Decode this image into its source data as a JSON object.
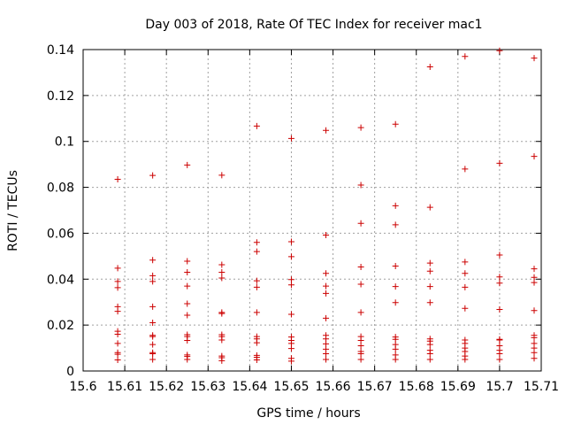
{
  "chart_data": {
    "type": "scatter",
    "title": "Day 003 of 2018, Rate Of TEC Index for receiver mac1",
    "xlabel": "GPS time / hours",
    "ylabel": "ROTI / TECUs",
    "xlim": [
      15.6,
      15.71
    ],
    "ylim": [
      0,
      0.14
    ],
    "grid": true,
    "x_ticks": [
      "15.6",
      "15.61",
      "15.62",
      "15.63",
      "15.64",
      "15.65",
      "15.66",
      "15.67",
      "15.68",
      "15.69",
      "15.7",
      "15.71"
    ],
    "x_tick_values": [
      15.6,
      15.61,
      15.62,
      15.63,
      15.64,
      15.65,
      15.66,
      15.67,
      15.68,
      15.69,
      15.7,
      15.71
    ],
    "y_ticks": [
      "0",
      "0.02",
      "0.04",
      "0.06",
      "0.08",
      "0.1",
      "0.12",
      "0.14"
    ],
    "y_tick_values": [
      0,
      0.02,
      0.04,
      0.06,
      0.08,
      0.1,
      0.12,
      0.14
    ],
    "marker": "+",
    "color": "#cc0000",
    "series": [
      {
        "name": "ROTI",
        "groups": [
          {
            "x": 15.6083,
            "y": [
              0.0835,
              0.0448,
              0.039,
              0.0363,
              0.028,
              0.026,
              0.0173,
              0.016,
              0.012,
              0.008,
              0.0073,
              0.0048
            ]
          },
          {
            "x": 15.6167,
            "y": [
              0.0852,
              0.0483,
              0.0415,
              0.039,
              0.028,
              0.021,
              0.0155,
              0.015,
              0.0115,
              0.008,
              0.0075,
              0.005
            ]
          },
          {
            "x": 15.625,
            "y": [
              0.0897,
              0.0478,
              0.043,
              0.037,
              0.0293,
              0.0243,
              0.0158,
              0.015,
              0.0133,
              0.007,
              0.0063,
              0.005
            ]
          },
          {
            "x": 15.6333,
            "y": [
              0.0853,
              0.0463,
              0.043,
              0.0405,
              0.0255,
              0.025,
              0.0158,
              0.015,
              0.0135,
              0.0065,
              0.0058,
              0.0045
            ]
          },
          {
            "x": 15.6417,
            "y": [
              0.1067,
              0.056,
              0.052,
              0.0393,
              0.0365,
              0.0255,
              0.015,
              0.014,
              0.0123,
              0.0068,
              0.006,
              0.0048
            ]
          },
          {
            "x": 15.65,
            "y": [
              0.1013,
              0.0563,
              0.0498,
              0.0398,
              0.0375,
              0.0247,
              0.0148,
              0.0133,
              0.012,
              0.0098,
              0.0055,
              0.0043
            ]
          },
          {
            "x": 15.6583,
            "y": [
              0.1048,
              0.0592,
              0.0425,
              0.037,
              0.0338,
              0.023,
              0.0155,
              0.014,
              0.0118,
              0.0095,
              0.0075,
              0.005
            ]
          },
          {
            "x": 15.6667,
            "y": [
              0.106,
              0.081,
              0.0643,
              0.0453,
              0.0378,
              0.0255,
              0.015,
              0.0133,
              0.011,
              0.0085,
              0.0075,
              0.005
            ]
          },
          {
            "x": 15.675,
            "y": [
              0.1075,
              0.072,
              0.0637,
              0.0457,
              0.0368,
              0.0298,
              0.0148,
              0.0138,
              0.0115,
              0.0095,
              0.007,
              0.005
            ]
          },
          {
            "x": 15.6833,
            "y": [
              0.1325,
              0.0713,
              0.047,
              0.0435,
              0.0368,
              0.0298,
              0.014,
              0.013,
              0.0115,
              0.009,
              0.0075,
              0.005
            ]
          },
          {
            "x": 15.6917,
            "y": [
              0.137,
              0.088,
              0.0475,
              0.0425,
              0.0365,
              0.0273,
              0.0135,
              0.012,
              0.01,
              0.0085,
              0.0065,
              0.005
            ]
          },
          {
            "x": 15.7,
            "y": [
              0.1395,
              0.0905,
              0.0505,
              0.041,
              0.0383,
              0.0268,
              0.0138,
              0.0135,
              0.011,
              0.009,
              0.0075,
              0.005
            ]
          },
          {
            "x": 15.7083,
            "y": [
              0.1363,
              0.0935,
              0.0445,
              0.0408,
              0.0385,
              0.0263,
              0.0155,
              0.0145,
              0.012,
              0.01,
              0.008,
              0.0055
            ]
          }
        ]
      }
    ]
  }
}
